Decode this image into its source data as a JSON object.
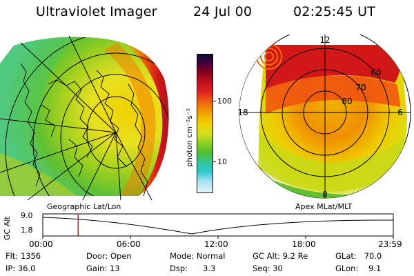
{
  "header": {
    "instrument": "Ultraviolet Imager",
    "date": "24 Jul 00",
    "time": "02:25:45 UT"
  },
  "colorbar": {
    "unit_label": "photon cm⁻²s⁻¹",
    "ticks": [
      "100",
      "10"
    ],
    "scale": "log"
  },
  "left_map": {
    "caption": "Geographic Lat/Lon"
  },
  "right_map": {
    "caption": "Apex MLat/MLT",
    "mlt_labels": [
      "12",
      "18",
      "6",
      "0"
    ],
    "mlat_labels": [
      "60",
      "70",
      "80"
    ]
  },
  "altitude_plot": {
    "ylabel": "GC Alt",
    "yticks": [
      "9.0",
      "1.8"
    ],
    "xticks": [
      "00:00",
      "06:00",
      "12:00",
      "18:00",
      "23:59"
    ],
    "current_time_fraction": 0.101,
    "marker_color": "#e01010"
  },
  "status": {
    "row1": [
      {
        "label": "Flt:",
        "value": "1356"
      },
      {
        "label": "Door:",
        "value": "Open"
      },
      {
        "label": "Mode:",
        "value": "Normal"
      },
      {
        "label": "GC Alt:",
        "value": "9.2 Re"
      },
      {
        "label": "GLat:",
        "value": "70.0"
      }
    ],
    "row2": [
      {
        "label": "IP:",
        "value": "36.0"
      },
      {
        "label": "Gain:",
        "value": "13"
      },
      {
        "label": "Dsp:",
        "value": "3.3"
      },
      {
        "label": "Seq:",
        "value": "30"
      },
      {
        "label": "GLon:",
        "value": "9.1"
      }
    ]
  },
  "colors": {
    "low": "#d8f0f8",
    "cyan": "#30c8d0",
    "green": "#60c020",
    "yellow": "#f0e000",
    "orange": "#f0a000",
    "red": "#e02020",
    "darkred": "#800020",
    "top": "#101030"
  }
}
